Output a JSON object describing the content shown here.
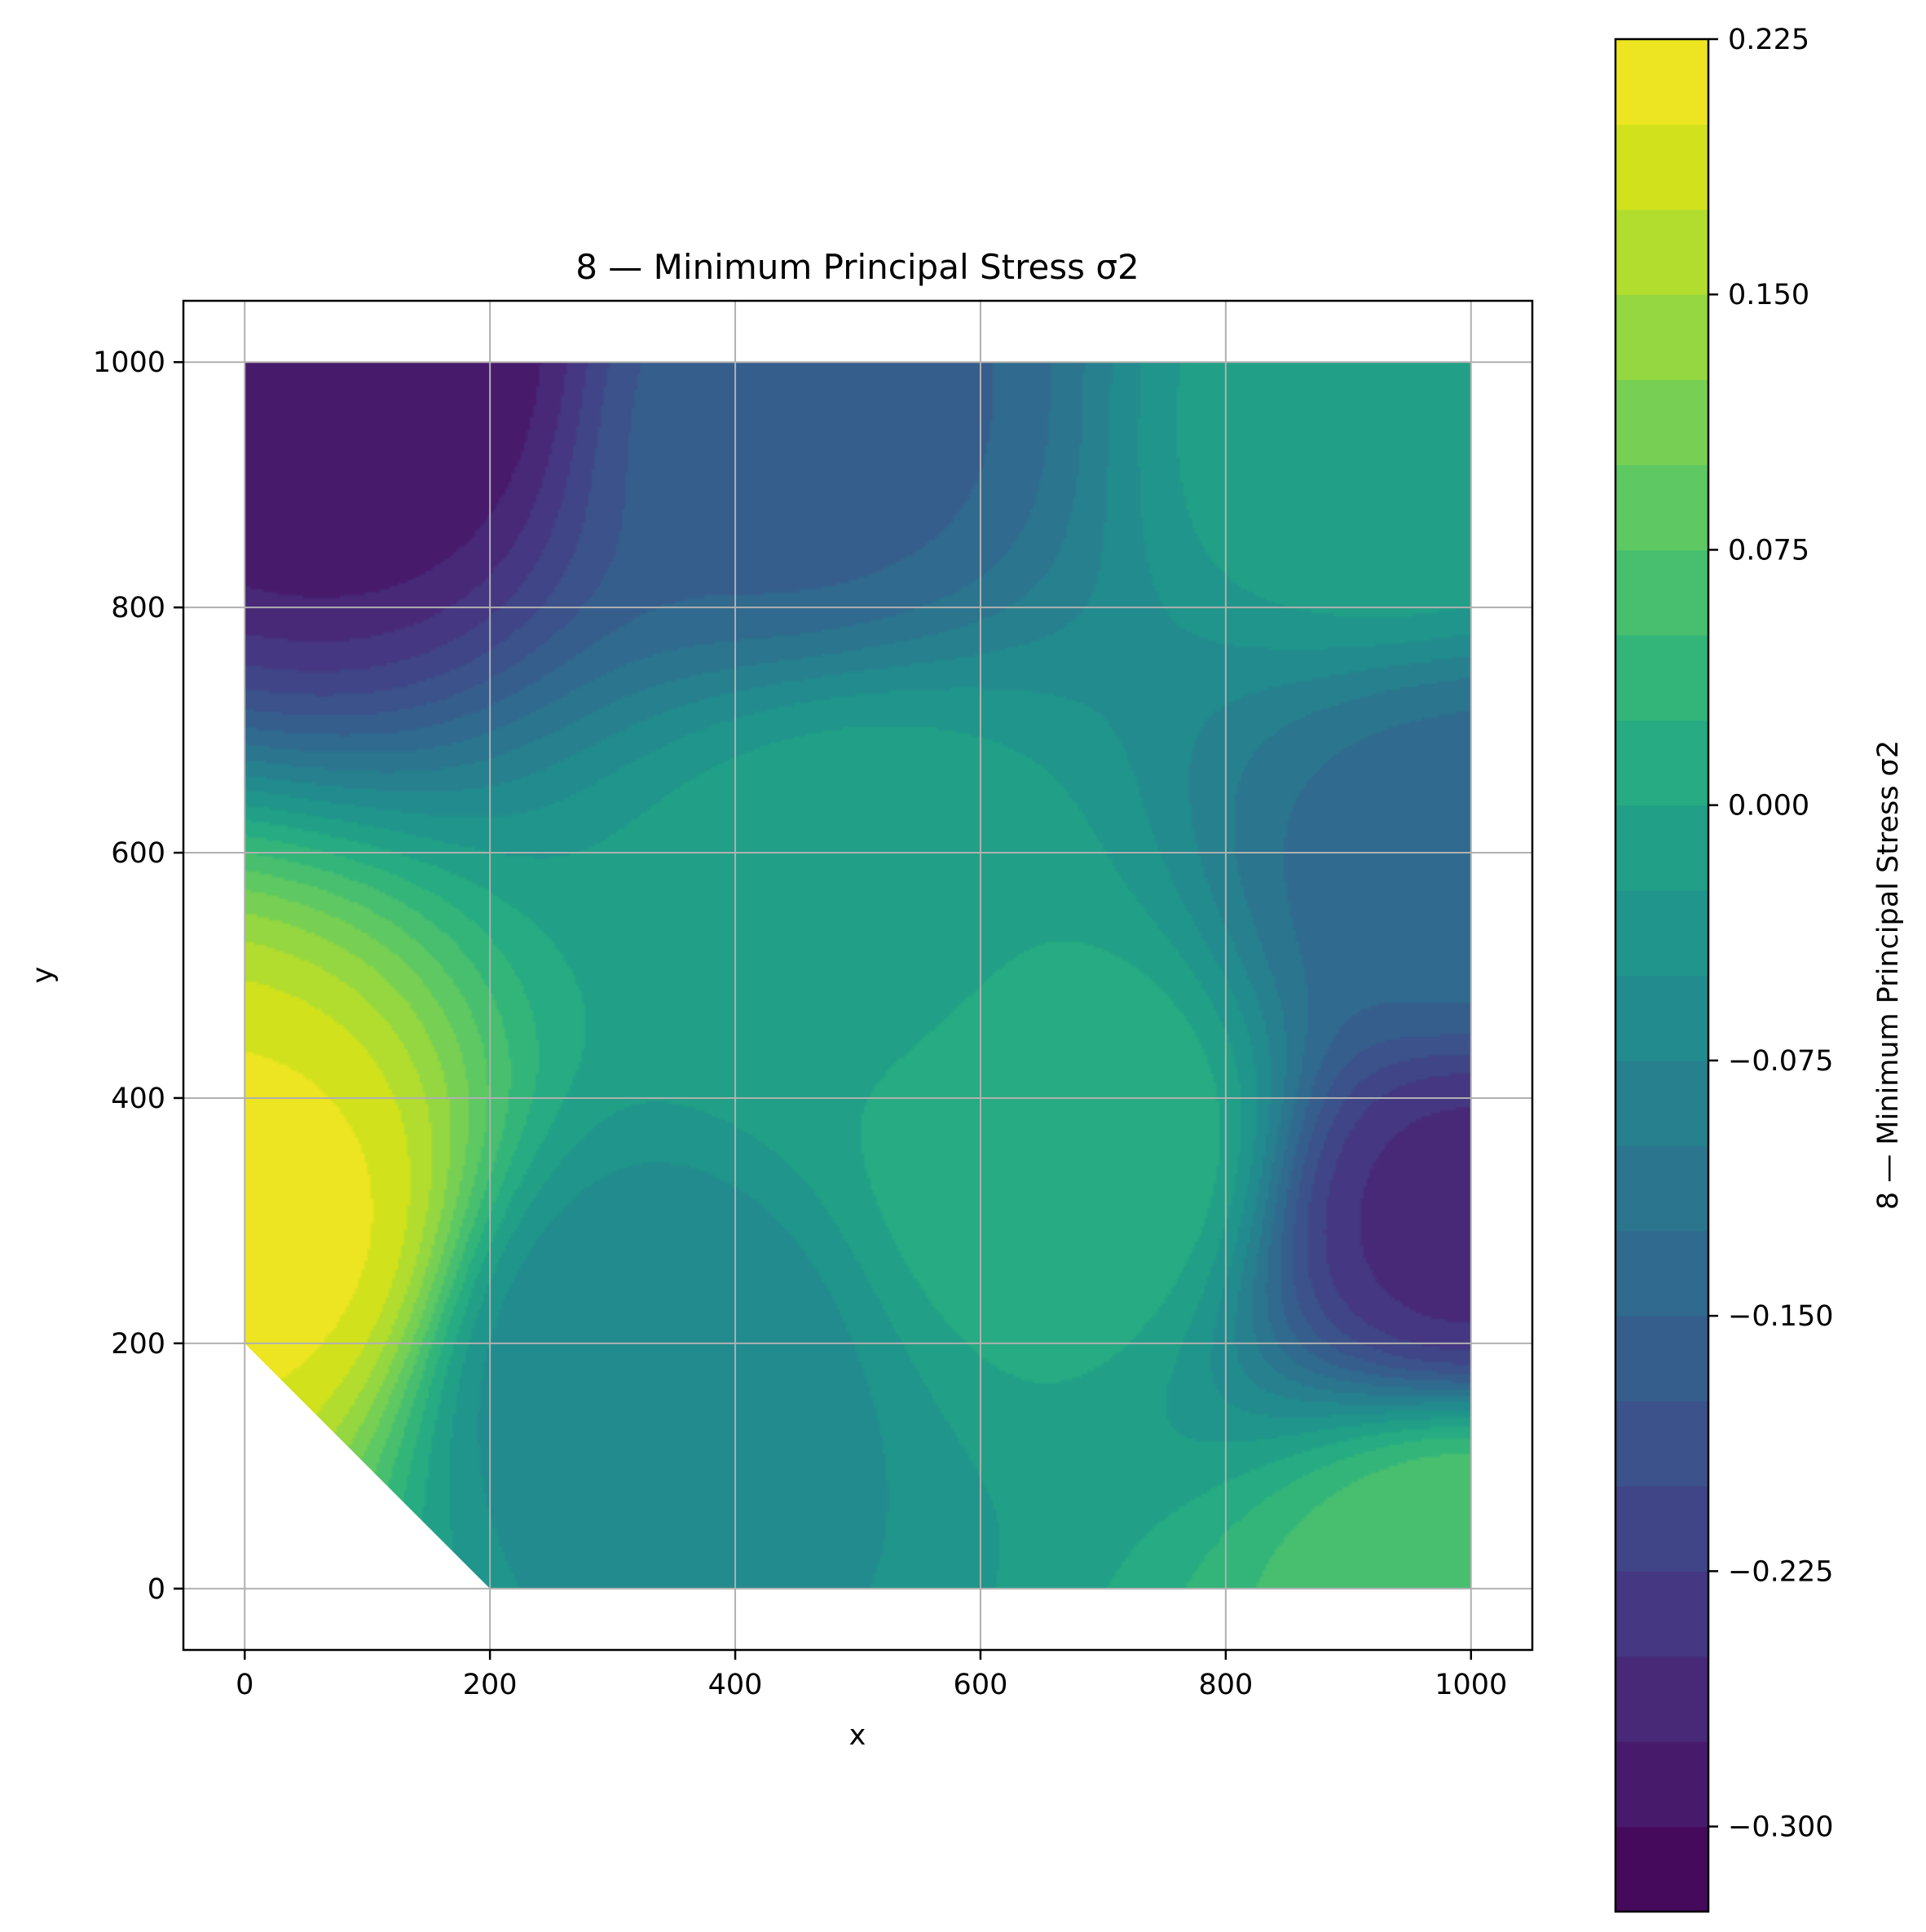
{
  "chart_data": {
    "type": "heatmap",
    "subtype": "filled-contour",
    "title": "8 — Minimum Principal Stress σ2",
    "xlabel": "x",
    "ylabel": "y",
    "xlim": [
      -50,
      1050
    ],
    "ylim": [
      -50,
      1050
    ],
    "xticks": [
      0,
      200,
      400,
      600,
      800,
      1000
    ],
    "yticks": [
      0,
      200,
      400,
      600,
      800,
      1000
    ],
    "xtick_labels": [
      "0",
      "200",
      "400",
      "600",
      "800",
      "1000"
    ],
    "ytick_labels": [
      "0",
      "200",
      "400",
      "600",
      "800",
      "1000"
    ],
    "grid": true,
    "domain_polygon": [
      [
        0,
        200
      ],
      [
        200,
        0
      ],
      [
        1000,
        0
      ],
      [
        1000,
        1000
      ],
      [
        0,
        1000
      ]
    ],
    "colormap": "viridis",
    "colorbar": {
      "label": "8 — Minimum Principal Stress σ2",
      "vmin": -0.325,
      "vmax": 0.225,
      "levels": 22,
      "ticks": [
        0.225,
        0.15,
        0.075,
        0.0,
        -0.075,
        -0.15,
        -0.225,
        -0.3
      ],
      "tick_labels": [
        "0.225",
        "0.150",
        "0.075",
        "0.000",
        "−0.075",
        "−0.150",
        "−0.225",
        "−0.300"
      ]
    },
    "field_features": [
      {
        "x": 0,
        "y": 290,
        "value": 0.21
      },
      {
        "x": 100,
        "y": 1000,
        "value": -0.3
      },
      {
        "x": 450,
        "y": 950,
        "value": -0.16
      },
      {
        "x": 1000,
        "y": 300,
        "value": -0.26
      },
      {
        "x": 1000,
        "y": 580,
        "value": -0.14
      },
      {
        "x": 680,
        "y": 360,
        "value": 0.025
      },
      {
        "x": 320,
        "y": 180,
        "value": -0.075
      },
      {
        "x": 950,
        "y": 940,
        "value": 0.0
      },
      {
        "x": 1000,
        "y": 10,
        "value": 0.075
      },
      {
        "x": 500,
        "y": 550,
        "value": -0.005
      }
    ]
  },
  "colors": {
    "grid": "#b0b0b0",
    "axes": "#000000",
    "background": "#ffffff"
  }
}
